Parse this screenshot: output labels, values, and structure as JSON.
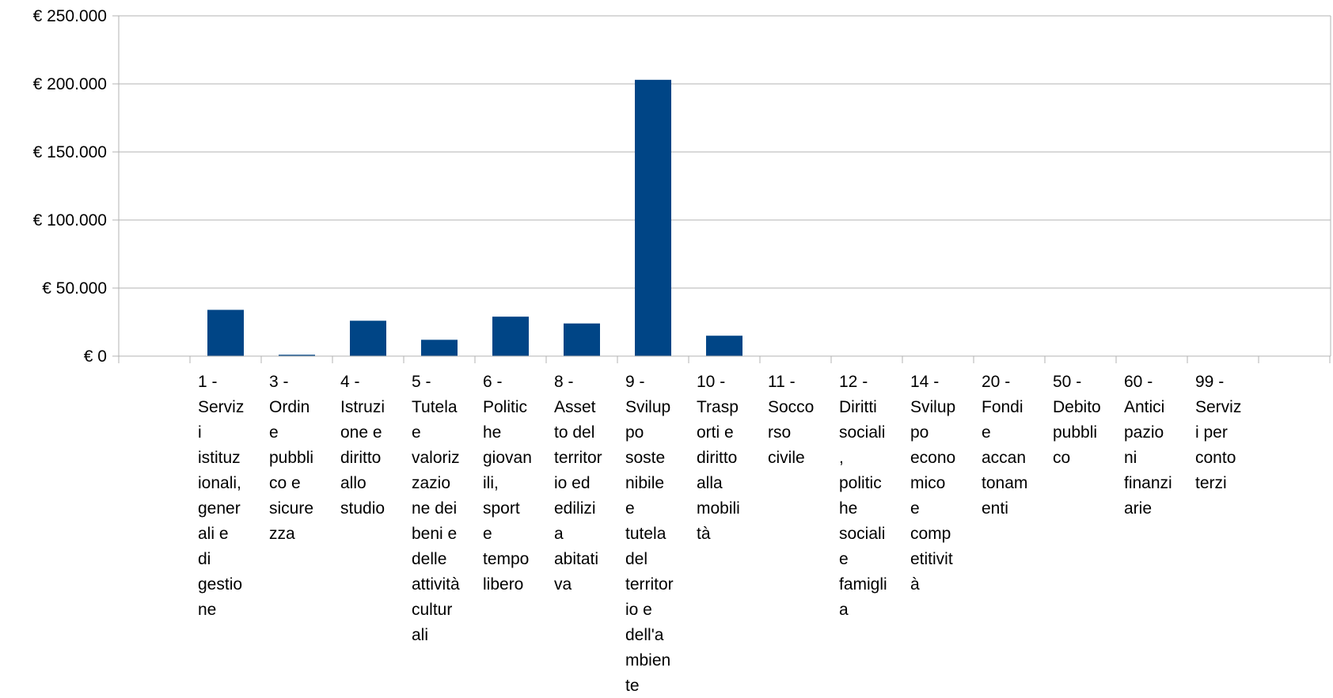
{
  "chart_data": {
    "type": "bar",
    "title": "",
    "xlabel": "",
    "ylabel": "",
    "ylim": [
      0,
      250000
    ],
    "y_ticks": [
      0,
      50000,
      100000,
      150000,
      200000,
      250000
    ],
    "y_tick_labels": [
      "€ 0",
      "€ 50.000",
      "€ 100.000",
      "€ 150.000",
      "€ 200.000",
      "€ 250.000"
    ],
    "grid": "horizontal",
    "bar_color": "#004586",
    "gridline_color": "#b3b3b3",
    "empty_leading_slots": 1,
    "categories": [
      "1 - Servizi istituzionali, generali e di gestione",
      "3 - Ordine pubblico e sicurezza",
      "4 - Istruzione e diritto allo studio",
      "5 - Tutela e valorizzazione dei beni e delle attività culturali",
      "6 - Politiche giovanili, sport e tempo libero",
      "8 - Assetto del territorio ed edilizia abitativa",
      "9 - Sviluppo sostenibile e tutela del territorio e dell'ambiente",
      "10 - Trasporti e diritto alla mobilità",
      "11 - Soccorso civile",
      "12 - Diritti sociali, politiche sociali e famiglia",
      "14 - Sviluppo economico e competitività",
      "20 - Fondi e accantonamenti",
      "50 - Debito pubblico",
      "60 - Anticipazioni finanziarie",
      "99 - Servizi per conto terzi"
    ],
    "category_label_lines": [
      [
        "1 -",
        "Serviz",
        "i",
        "istituz",
        "ionali,",
        "gener",
        "ali e",
        "di",
        "gestio",
        "ne"
      ],
      [
        "3 -",
        "Ordin",
        "e",
        "pubbli",
        "co e",
        "sicure",
        "zza"
      ],
      [
        "4 -",
        "Istruzi",
        "one e",
        "diritto",
        "allo",
        "studio"
      ],
      [
        "5 -",
        "Tutela",
        "e",
        "valoriz",
        "zazio",
        "ne dei",
        "beni e",
        "delle",
        "attività",
        "cultur",
        "ali"
      ],
      [
        "6 -",
        "Politic",
        "he",
        "giovan",
        "ili,",
        "sport",
        "e",
        "tempo",
        "libero"
      ],
      [
        "8 -",
        "Asset",
        "to del",
        "territor",
        "io ed",
        "edilizi",
        "a",
        "abitati",
        "va"
      ],
      [
        "9 -",
        "Svilup",
        "po",
        "soste",
        "nibile",
        "e",
        "tutela",
        "del",
        "territor",
        "io e",
        "dell'a",
        "mbien",
        "te"
      ],
      [
        "10 -",
        "Trasp",
        "orti e",
        "diritto",
        "alla",
        "mobili",
        "tà"
      ],
      [
        "11 -",
        "Socco",
        "rso",
        "civile"
      ],
      [
        "12 -",
        "Diritti",
        "sociali",
        ",",
        "politic",
        "he",
        "sociali",
        "e",
        "famigli",
        "a"
      ],
      [
        "14 -",
        "Svilup",
        "po",
        "econo",
        "mico",
        "e",
        "comp",
        "etitivit",
        "à"
      ],
      [
        "20 -",
        "Fondi",
        "e",
        "accan",
        "tonam",
        "enti"
      ],
      [
        "50 -",
        "Debito",
        "pubbli",
        "co"
      ],
      [
        "60 -",
        "Antici",
        "pazio",
        "ni",
        "finanzi",
        "arie"
      ],
      [
        "99 -",
        "Serviz",
        "i per",
        "conto",
        "terzi"
      ]
    ],
    "values": [
      34000,
      1000,
      26000,
      12000,
      29000,
      24000,
      203000,
      15000,
      0,
      0,
      0,
      0,
      0,
      0,
      0
    ]
  }
}
